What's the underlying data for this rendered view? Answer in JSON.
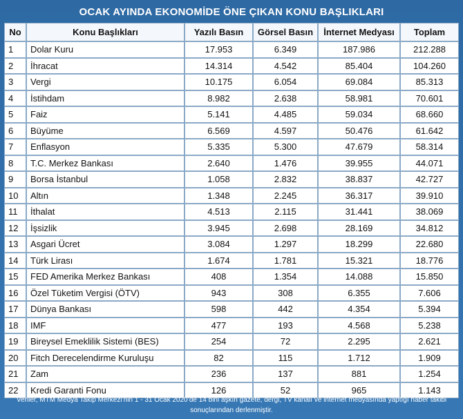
{
  "title": "OCAK AYINDA EKONOMİDE ÖNE ÇIKAN KONU BAŞLIKLARI",
  "columns": [
    "No",
    "Konu Başlıkları",
    "Yazılı Basın",
    "Görsel Basın",
    "İnternet Medyası",
    "Toplam"
  ],
  "rows": [
    {
      "no": "1",
      "topic": "Dolar Kuru",
      "print": "17.953",
      "visual": "6.349",
      "internet": "187.986",
      "total": "212.288"
    },
    {
      "no": "2",
      "topic": "İhracat",
      "print": "14.314",
      "visual": "4.542",
      "internet": "85.404",
      "total": "104.260"
    },
    {
      "no": "3",
      "topic": "Vergi",
      "print": "10.175",
      "visual": "6.054",
      "internet": "69.084",
      "total": "85.313"
    },
    {
      "no": "4",
      "topic": "İstihdam",
      "print": "8.982",
      "visual": "2.638",
      "internet": "58.981",
      "total": "70.601"
    },
    {
      "no": "5",
      "topic": "Faiz",
      "print": "5.141",
      "visual": "4.485",
      "internet": "59.034",
      "total": "68.660"
    },
    {
      "no": "6",
      "topic": "Büyüme",
      "print": "6.569",
      "visual": "4.597",
      "internet": "50.476",
      "total": "61.642"
    },
    {
      "no": "7",
      "topic": "Enflasyon",
      "print": "5.335",
      "visual": "5.300",
      "internet": "47.679",
      "total": "58.314"
    },
    {
      "no": "8",
      "topic": "T.C. Merkez Bankası",
      "print": "2.640",
      "visual": "1.476",
      "internet": "39.955",
      "total": "44.071"
    },
    {
      "no": "9",
      "topic": "Borsa İstanbul",
      "print": "1.058",
      "visual": "2.832",
      "internet": "38.837",
      "total": "42.727"
    },
    {
      "no": "10",
      "topic": "Altın",
      "print": "1.348",
      "visual": "2.245",
      "internet": "36.317",
      "total": "39.910"
    },
    {
      "no": "11",
      "topic": "İthalat",
      "print": "4.513",
      "visual": "2.115",
      "internet": "31.441",
      "total": "38.069"
    },
    {
      "no": "12",
      "topic": "İşsizlik",
      "print": "3.945",
      "visual": "2.698",
      "internet": "28.169",
      "total": "34.812"
    },
    {
      "no": "13",
      "topic": "Asgari Ücret",
      "print": "3.084",
      "visual": "1.297",
      "internet": "18.299",
      "total": "22.680"
    },
    {
      "no": "14",
      "topic": "Türk Lirası",
      "print": "1.674",
      "visual": "1.781",
      "internet": "15.321",
      "total": "18.776"
    },
    {
      "no": "15",
      "topic": "FED Amerika Merkez Bankası",
      "print": "408",
      "visual": "1.354",
      "internet": "14.088",
      "total": "15.850"
    },
    {
      "no": "16",
      "topic": "Özel Tüketim Vergisi (ÖTV)",
      "print": "943",
      "visual": "308",
      "internet": "6.355",
      "total": "7.606"
    },
    {
      "no": "17",
      "topic": "Dünya Bankası",
      "print": "598",
      "visual": "442",
      "internet": "4.354",
      "total": "5.394"
    },
    {
      "no": "18",
      "topic": "IMF",
      "print": "477",
      "visual": "193",
      "internet": "4.568",
      "total": "5.238"
    },
    {
      "no": "19",
      "topic": "Bireysel Emeklilik Sistemi (BES)",
      "print": "254",
      "visual": "72",
      "internet": "2.295",
      "total": "2.621"
    },
    {
      "no": "20",
      "topic": "Fitch Derecelendirme Kuruluşu",
      "print": "82",
      "visual": "115",
      "internet": "1.712",
      "total": "1.909"
    },
    {
      "no": "21",
      "topic": "Zam",
      "print": "236",
      "visual": "137",
      "internet": "881",
      "total": "1.254"
    },
    {
      "no": "22",
      "topic": "Kredi Garanti Fonu",
      "print": "126",
      "visual": "52",
      "internet": "965",
      "total": "1.143"
    }
  ],
  "footer": "Veriler, MTM Medya Takip Merkezi’nin 1 - 31 Ocak 2020’de 14 bini aşkın gazete, dergi, TV kanalı ve internet medyasında yaptığı haber takibi sonuçlarından derlenmiştir."
}
